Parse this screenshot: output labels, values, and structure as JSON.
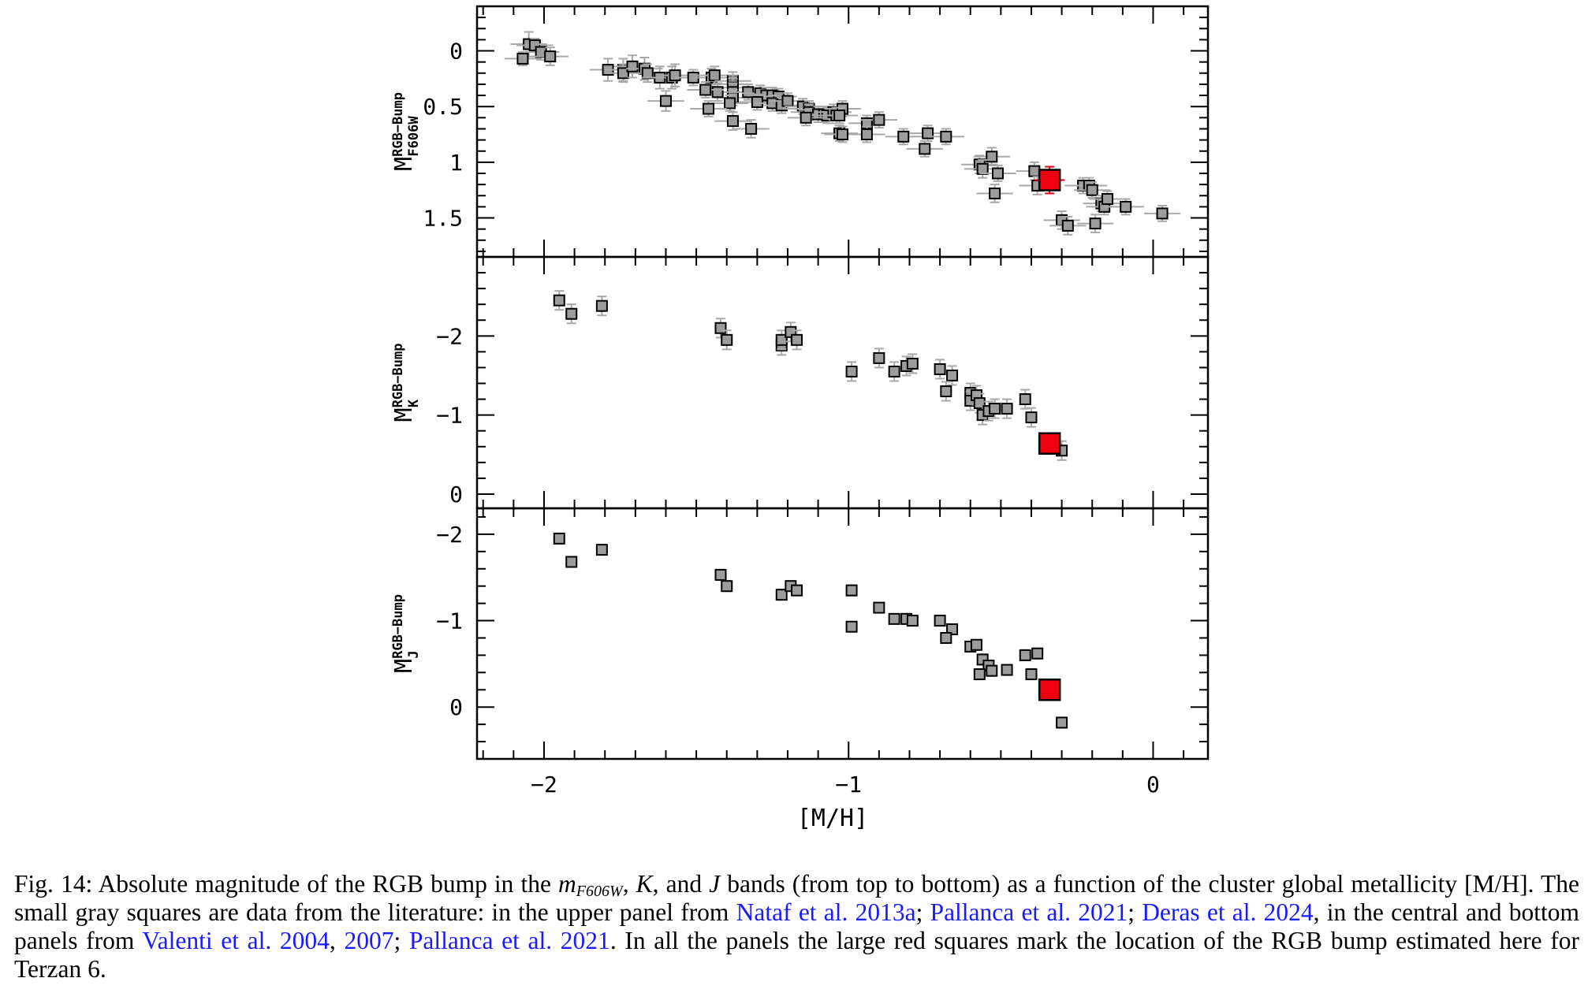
{
  "chart_data": [
    {
      "type": "scatter",
      "panel": "top",
      "ylabel": "M",
      "ylabel_sup": "RGB−Bump",
      "ylabel_sub": "F606W",
      "xlim": [
        -2.22,
        0.18
      ],
      "ylim": [
        -0.4,
        1.85
      ],
      "y_inverted": true,
      "yticks": [
        0,
        0.5,
        1,
        1.5
      ],
      "ytick_labels": [
        "0",
        "0.5",
        "1",
        "1.5"
      ],
      "series": [
        {
          "style": "literature",
          "points": [
            [
              -2.05,
              -0.06,
              0.11
            ],
            [
              -2.03,
              -0.05,
              0.06
            ],
            [
              -2.07,
              0.07,
              0.06
            ],
            [
              -2.01,
              0.01,
              0.07
            ],
            [
              -1.98,
              0.05,
              0.08
            ],
            [
              -1.79,
              0.17,
              0.1
            ],
            [
              -1.74,
              0.17,
              0.1
            ],
            [
              -1.74,
              0.2,
              0.08
            ],
            [
              -1.71,
              0.14,
              0.1
            ],
            [
              -1.67,
              0.16,
              0.1
            ],
            [
              -1.66,
              0.2,
              0.08
            ],
            [
              -1.62,
              0.24,
              0.1
            ],
            [
              -1.58,
              0.24,
              0.1
            ],
            [
              -1.57,
              0.22,
              0.1
            ],
            [
              -1.51,
              0.24,
              0.07
            ],
            [
              -1.45,
              0.24,
              0.08
            ],
            [
              -1.44,
              0.22,
              0.08
            ],
            [
              -1.38,
              0.27,
              0.08
            ],
            [
              -1.38,
              0.3,
              0.08
            ],
            [
              -1.38,
              0.33,
              0.08
            ],
            [
              -1.38,
              0.37,
              0.08
            ],
            [
              -1.38,
              0.42,
              0.07
            ],
            [
              -1.39,
              0.47,
              0.07
            ],
            [
              -1.43,
              0.37,
              0.08
            ],
            [
              -1.47,
              0.35,
              0.07
            ],
            [
              -1.46,
              0.52,
              0.07
            ],
            [
              -1.6,
              0.45,
              0.09
            ],
            [
              -1.33,
              0.37,
              0.07
            ],
            [
              -1.29,
              0.38,
              0.07
            ],
            [
              -1.27,
              0.4,
              0.07
            ],
            [
              -1.25,
              0.4,
              0.07
            ],
            [
              -1.23,
              0.41,
              0.07
            ],
            [
              -1.3,
              0.46,
              0.07
            ],
            [
              -1.25,
              0.47,
              0.07
            ],
            [
              -1.22,
              0.49,
              0.07
            ],
            [
              -1.2,
              0.45,
              0.07
            ],
            [
              -1.15,
              0.5,
              0.07
            ],
            [
              -1.13,
              0.52,
              0.07
            ],
            [
              -1.13,
              0.55,
              0.07
            ],
            [
              -1.1,
              0.57,
              0.07
            ],
            [
              -1.08,
              0.57,
              0.07
            ],
            [
              -1.07,
              0.58,
              0.07
            ],
            [
              -1.05,
              0.55,
              0.07
            ],
            [
              -1.04,
              0.58,
              0.07
            ],
            [
              -1.02,
              0.52,
              0.07
            ],
            [
              -1.03,
              0.58,
              0.07
            ],
            [
              -1.14,
              0.6,
              0.07
            ],
            [
              -1.38,
              0.63,
              0.08
            ],
            [
              -1.32,
              0.7,
              0.08
            ],
            [
              -1.03,
              0.74,
              0.07
            ],
            [
              -1.02,
              0.75,
              0.07
            ],
            [
              -0.94,
              0.65,
              0.07
            ],
            [
              -0.9,
              0.62,
              0.07
            ],
            [
              -0.94,
              0.75,
              0.07
            ],
            [
              -0.82,
              0.77,
              0.07
            ],
            [
              -0.74,
              0.74,
              0.07
            ],
            [
              -0.68,
              0.77,
              0.07
            ],
            [
              -0.75,
              0.88,
              0.07
            ],
            [
              -0.53,
              0.95,
              0.08
            ],
            [
              -0.57,
              1.02,
              0.08
            ],
            [
              -0.56,
              1.06,
              0.08
            ],
            [
              -0.51,
              1.1,
              0.07
            ],
            [
              -0.39,
              1.08,
              0.08
            ],
            [
              -0.23,
              1.21,
              0.07
            ],
            [
              -0.21,
              1.21,
              0.07
            ],
            [
              -0.2,
              1.25,
              0.07
            ],
            [
              -0.17,
              1.37,
              0.07
            ],
            [
              -0.16,
              1.4,
              0.07
            ],
            [
              -0.15,
              1.33,
              0.07
            ],
            [
              -0.09,
              1.4,
              0.07
            ],
            [
              0.03,
              1.46,
              0.07
            ],
            [
              -0.52,
              1.28,
              0.08
            ],
            [
              -0.38,
              1.21,
              0.08
            ],
            [
              -0.3,
              1.52,
              0.08
            ],
            [
              -0.28,
              1.57,
              0.08
            ],
            [
              -0.19,
              1.55,
              0.08
            ]
          ]
        },
        {
          "style": "terzan6",
          "points": [
            [
              -0.34,
              1.16,
              0.12
            ]
          ]
        }
      ]
    },
    {
      "type": "scatter",
      "panel": "middle",
      "ylabel": "M",
      "ylabel_sup": "RGB−Bump",
      "ylabel_sub": "K",
      "xlim": [
        -2.22,
        0.18
      ],
      "ylim": [
        -3.0,
        0.18
      ],
      "y_inverted": false,
      "yticks": [
        -2,
        -1,
        0
      ],
      "ytick_labels": [
        "−2",
        "−1",
        "0"
      ],
      "series": [
        {
          "style": "literature",
          "points": [
            [
              -1.95,
              -2.45,
              0.12
            ],
            [
              -1.91,
              -2.28,
              0.12
            ],
            [
              -1.81,
              -2.38,
              0.12
            ],
            [
              -1.42,
              -2.1,
              0.12
            ],
            [
              -1.4,
              -1.95,
              0.12
            ],
            [
              -1.22,
              -1.88,
              0.12
            ],
            [
              -1.22,
              -1.95,
              0.12
            ],
            [
              -1.19,
              -2.05,
              0.12
            ],
            [
              -1.17,
              -1.95,
              0.12
            ],
            [
              -0.99,
              -1.55,
              0.12
            ],
            [
              -0.9,
              -1.72,
              0.12
            ],
            [
              -0.85,
              -1.55,
              0.12
            ],
            [
              -0.81,
              -1.62,
              0.12
            ],
            [
              -0.79,
              -1.65,
              0.12
            ],
            [
              -0.7,
              -1.58,
              0.12
            ],
            [
              -0.66,
              -1.5,
              0.12
            ],
            [
              -0.68,
              -1.3,
              0.12
            ],
            [
              -0.6,
              -1.28,
              0.12
            ],
            [
              -0.6,
              -1.18,
              0.12
            ],
            [
              -0.58,
              -1.25,
              0.12
            ],
            [
              -0.57,
              -1.15,
              0.12
            ],
            [
              -0.56,
              -1.0,
              0.12
            ],
            [
              -0.54,
              -1.05,
              0.12
            ],
            [
              -0.52,
              -1.08,
              0.12
            ],
            [
              -0.48,
              -1.08,
              0.12
            ],
            [
              -0.42,
              -1.2,
              0.12
            ],
            [
              -0.4,
              -0.97,
              0.12
            ],
            [
              -0.3,
              -0.55,
              0.12
            ]
          ]
        },
        {
          "style": "terzan6",
          "points": [
            [
              -0.34,
              -0.64,
              0.12
            ]
          ]
        }
      ]
    },
    {
      "type": "scatter",
      "panel": "bottom",
      "ylabel": "M",
      "ylabel_sup": "RGB−Bump",
      "ylabel_sub": "J",
      "xlabel": "[M/H]",
      "xlim": [
        -2.22,
        0.18
      ],
      "xticks": [
        -2,
        -1,
        0
      ],
      "xtick_labels": [
        "−2",
        "−1",
        "0"
      ],
      "ylim": [
        -2.3,
        0.6
      ],
      "y_inverted": false,
      "yticks": [
        -2,
        -1,
        0
      ],
      "ytick_labels": [
        "−2",
        "−1",
        "0"
      ],
      "series": [
        {
          "style": "literature",
          "points": [
            [
              -1.95,
              -1.95,
              0.04
            ],
            [
              -1.91,
              -1.68,
              0.04
            ],
            [
              -1.81,
              -1.82,
              0.04
            ],
            [
              -1.42,
              -1.53,
              0.06
            ],
            [
              -1.4,
              -1.4,
              0.06
            ],
            [
              -1.22,
              -1.3,
              0.06
            ],
            [
              -1.19,
              -1.4,
              0.06
            ],
            [
              -1.17,
              -1.35,
              0.06
            ],
            [
              -0.99,
              -1.35,
              0.06
            ],
            [
              -0.99,
              -0.93,
              0.05
            ],
            [
              -0.9,
              -1.15,
              0.04
            ],
            [
              -0.85,
              -1.02,
              0.04
            ],
            [
              -0.81,
              -1.02,
              0.06
            ],
            [
              -0.79,
              -1.0,
              0.06
            ],
            [
              -0.7,
              -1.0,
              0.06
            ],
            [
              -0.66,
              -0.9,
              0.06
            ],
            [
              -0.68,
              -0.8,
              0.06
            ],
            [
              -0.6,
              -0.7,
              0.06
            ],
            [
              -0.58,
              -0.72,
              0.06
            ],
            [
              -0.56,
              -0.55,
              0.06
            ],
            [
              -0.54,
              -0.48,
              0.06
            ],
            [
              -0.57,
              -0.38,
              0.06
            ],
            [
              -0.53,
              -0.42,
              0.06
            ],
            [
              -0.48,
              -0.43,
              0.04
            ],
            [
              -0.42,
              -0.6,
              0.06
            ],
            [
              -0.38,
              -0.62,
              0.06
            ],
            [
              -0.4,
              -0.38,
              0.06
            ],
            [
              -0.3,
              0.18,
              0.06
            ]
          ]
        },
        {
          "style": "terzan6",
          "points": [
            [
              -0.34,
              -0.2,
              0.12
            ]
          ]
        }
      ]
    }
  ],
  "colors": {
    "literature_fill": "#9c9c9c",
    "literature_edge": "#000000",
    "errorbar": "#a8a8a8",
    "terzan6_fill": "#ee0010",
    "terzan6_error": "#e00010",
    "link": "#1a1aff"
  },
  "caption": {
    "lead": "Fig. 14: Absolute magnitude of the RGB bump in the ",
    "band_m": "m",
    "band_m_sub": "F606W",
    "part2": ", ",
    "band_k": "K",
    "part3": ", and ",
    "band_j": "J",
    "part4": " bands (from top to bottom) as a function of the cluster global metallicity [M/H]. The small gray squares are data from the literature: in the upper panel from ",
    "ref1": "Nataf et al. 2013a",
    "sep1": "; ",
    "ref2": "Pallanca et al. 2021",
    "sep2": "; ",
    "ref3": "Deras et al. 2024",
    "part5": ", in the central and bottom panels from ",
    "ref4": "Valenti et al. 2004",
    "sep3": ", ",
    "ref5": "2007",
    "sep4": "; ",
    "ref6": "Pallanca et al. 2021",
    "part6": ". In all the panels the large red squares mark the location of the RGB bump estimated here for Terzan 6."
  }
}
